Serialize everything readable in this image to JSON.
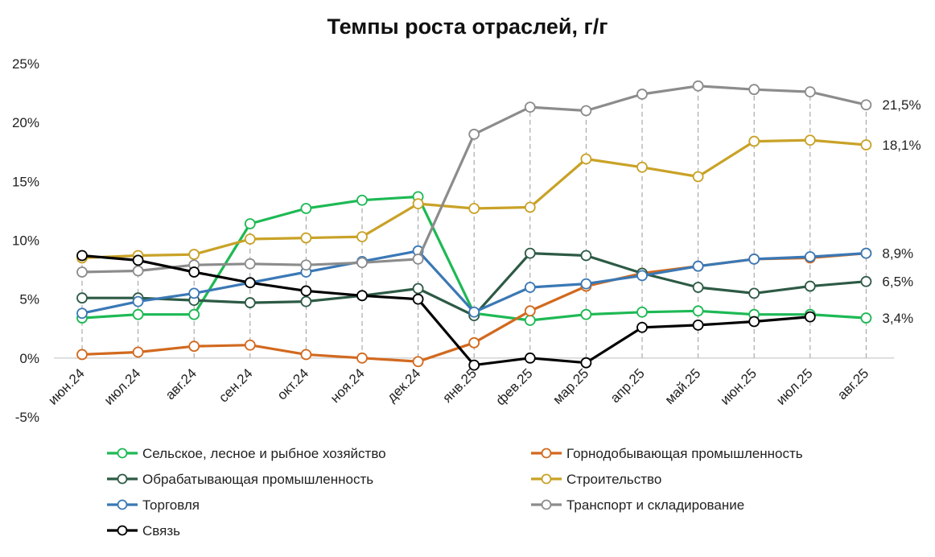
{
  "chart_data": {
    "type": "line",
    "title": "Темпы роста отраслей, г/г",
    "xlabel": "",
    "ylabel": "",
    "ylim": [
      -5,
      25
    ],
    "yticks": [
      "-5%",
      "0%",
      "5%",
      "10%",
      "15%",
      "20%",
      "25%"
    ],
    "ytick_values": [
      -5,
      0,
      5,
      10,
      15,
      20,
      25
    ],
    "categories": [
      "июн.24",
      "июл.24",
      "авг.24",
      "сен.24",
      "окт.24",
      "ноя.24",
      "дек.24",
      "янв.25",
      "фев.25",
      "мар.25",
      "апр.25",
      "май.25",
      "июн.25",
      "июл.25",
      "авг.25"
    ],
    "grid": "vertical dashed",
    "legend_position": "bottom",
    "series": [
      {
        "name": "Сельское, лесное и рыбное хозяйство",
        "color": "#1db954",
        "values": [
          3.4,
          3.7,
          3.7,
          11.4,
          12.7,
          13.4,
          13.7,
          3.8,
          3.2,
          3.7,
          3.9,
          4.0,
          3.7,
          3.7,
          3.4
        ],
        "end_label": "3,4%"
      },
      {
        "name": "Горнодобывающая промышленность",
        "color": "#d2691e",
        "values": [
          0.3,
          0.5,
          1.0,
          1.1,
          0.3,
          0.0,
          -0.3,
          1.3,
          4.0,
          6.1,
          7.2,
          7.8,
          8.4,
          8.5,
          8.9
        ],
        "end_label": ""
      },
      {
        "name": "Обрабатывающая промышленность",
        "color": "#2d5a45",
        "values": [
          5.1,
          5.1,
          4.9,
          4.7,
          4.8,
          5.3,
          5.9,
          3.6,
          8.9,
          8.7,
          7.2,
          6.0,
          5.5,
          6.1,
          6.5
        ],
        "end_label": "6,5%"
      },
      {
        "name": "Строительство",
        "color": "#c9a227",
        "values": [
          8.5,
          8.7,
          8.8,
          10.1,
          10.2,
          10.3,
          13.1,
          12.7,
          12.8,
          16.9,
          16.2,
          15.4,
          18.4,
          18.5,
          18.1
        ],
        "end_label": "18,1%"
      },
      {
        "name": "Торговля",
        "color": "#3a78b5",
        "values": [
          3.8,
          4.8,
          5.5,
          6.4,
          7.3,
          8.2,
          9.1,
          3.9,
          6.0,
          6.3,
          7.0,
          7.8,
          8.4,
          8.6,
          8.9
        ],
        "end_label": "8,9%"
      },
      {
        "name": "Транспорт и складирование",
        "color": "#8c8c8c",
        "values": [
          7.3,
          7.4,
          7.9,
          8.0,
          7.9,
          8.1,
          8.4,
          19.0,
          21.3,
          21.0,
          22.4,
          23.1,
          22.8,
          22.6,
          21.5
        ],
        "end_label": "21,5%"
      },
      {
        "name": "Связь",
        "color": "#000000",
        "values": [
          8.7,
          8.3,
          7.3,
          6.4,
          5.7,
          5.3,
          5.0,
          -0.6,
          0.0,
          -0.4,
          2.6,
          2.8,
          3.1,
          3.5,
          null
        ],
        "end_label": ""
      }
    ]
  }
}
